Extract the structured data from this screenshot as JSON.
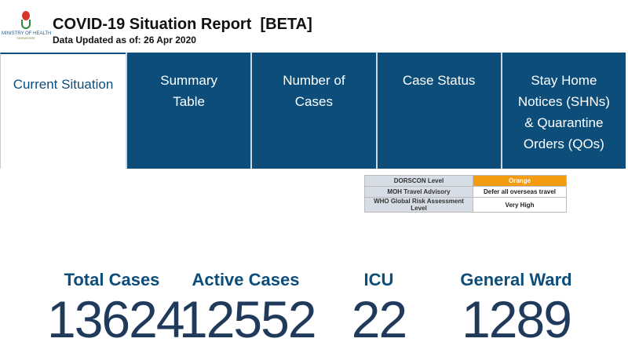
{
  "header": {
    "logo_text": "MINISTRY OF HEALTH",
    "logo_subtext": "SINGAPORE",
    "title": "COVID-19 Situation Report  [BETA]",
    "updated": "Data Updated as of: 26 Apr 2020"
  },
  "tabs": [
    {
      "label": "Current Situation"
    },
    {
      "label": "Summary Table"
    },
    {
      "label": "Number of Cases"
    },
    {
      "label": "Case Status"
    },
    {
      "label": "Stay Home Notices (SHNs) & Quarantine Orders (QOs)"
    }
  ],
  "status_table": [
    {
      "key": "DORSCON Level",
      "value": "Orange"
    },
    {
      "key": "MOH Travel Advisory",
      "value": "Defer all overseas travel"
    },
    {
      "key": "WHO Global Risk Assessment Level",
      "value": "Very High"
    }
  ],
  "colors": {
    "brand": "#0c4d79",
    "dorscon": "#f39c12"
  },
  "stats": [
    {
      "label": "Total Cases",
      "value": "13624"
    },
    {
      "label": "Active Cases",
      "value": "12552"
    },
    {
      "label": "ICU",
      "value": "22"
    },
    {
      "label": "General Ward",
      "value": "1289"
    }
  ]
}
